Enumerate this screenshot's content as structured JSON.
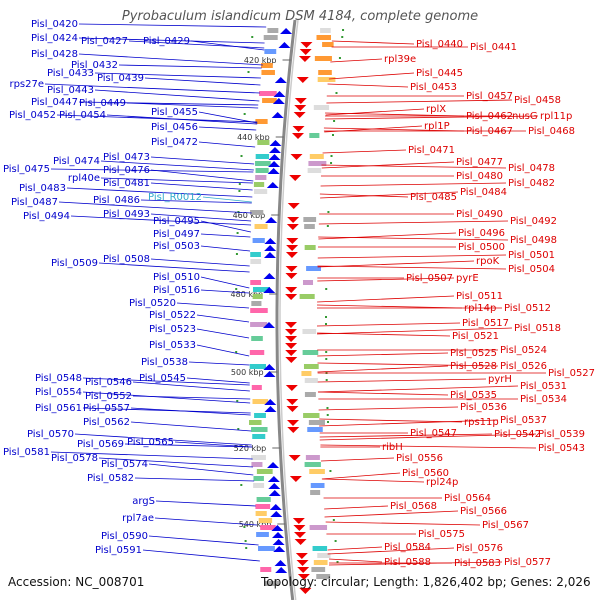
{
  "title": "Pyrobaculum islandicum DSM 4184, complete genome",
  "footer": {
    "accession": "Accession: NC_008701",
    "topology": "Topology: circular; Length: 1,826,402 bp; Genes: 2,026"
  },
  "colors": {
    "left_labels": "#0000cc",
    "right_labels": "#dd0000",
    "rna_label": "#33aacc",
    "backbone": "#888888"
  },
  "ticks": [
    "420 kbp",
    "440 kbp",
    "460 kbp",
    "480 kbp",
    "500 kbp",
    "520 kbp",
    "540 kbp"
  ],
  "left_labels": [
    "Pisl_0420",
    "Pisl_0424",
    "Pisl_0427",
    "Pisl_0429",
    "Pisl_0428",
    "Pisl_0432",
    "Pisl_0433",
    "Pisl_0439",
    "rps27e",
    "Pisl_0443",
    "Pisl_0447",
    "Pisl_0449",
    "Pisl_0452",
    "Pisl_0454",
    "Pisl_0455",
    "Pisl_0456",
    "Pisl_0472",
    "Pisl_0473",
    "Pisl_0474",
    "Pisl_0476",
    "Pisl_0475",
    "rpl40e",
    "Pisl_0481",
    "Pisl_0483",
    "Pisl_0487",
    "Pisl_0486",
    "Pisl_R0012",
    "Pisl_0493",
    "Pisl_0494",
    "Pisl_0495",
    "Pisl_0497",
    "Pisl_0503",
    "Pisl_0508",
    "Pisl_0509",
    "Pisl_0510",
    "Pisl_0516",
    "Pisl_0520",
    "Pisl_0522",
    "Pisl_0523",
    "Pisl_0533",
    "Pisl_0538",
    "Pisl_0545",
    "Pisl_0548",
    "Pisl_0546",
    "Pisl_0554",
    "Pisl_0552",
    "Pisl_0561",
    "Pisl_0557",
    "Pisl_0562",
    "Pisl_0570",
    "Pisl_0569",
    "Pisl_0565",
    "Pisl_0581",
    "Pisl_0578",
    "Pisl_0574",
    "Pisl_0582",
    "argS",
    "rpl7ae",
    "Pisl_0590",
    "Pisl_0591"
  ],
  "right_labels": [
    "Pisl_0440",
    "Pisl_0441",
    "rpl39e",
    "Pisl_0445",
    "Pisl_0453",
    "Pisl_0457",
    "Pisl_0458",
    "rplX",
    "Pisl_0462",
    "nusG",
    "rpl11p",
    "rpl1P",
    "Pisl_0467",
    "Pisl_0468",
    "Pisl_0471",
    "Pisl_0477",
    "Pisl_0478",
    "Pisl_0480",
    "Pisl_0482",
    "Pisl_0484",
    "Pisl_0485",
    "Pisl_0490",
    "Pisl_0492",
    "Pisl_0496",
    "Pisl_0498",
    "Pisl_0500",
    "Pisl_0501",
    "rpoK",
    "Pisl_0504",
    "Pisl_0507",
    "pyrE",
    "Pisl_0511",
    "rpl14p",
    "Pisl_0512",
    "Pisl_0517",
    "Pisl_0518",
    "Pisl_0521",
    "Pisl_0524",
    "Pisl_0525",
    "Pisl_0528",
    "Pisl_0526",
    "Pisl_0527",
    "pyrH",
    "Pisl_0531",
    "Pisl_0535",
    "Pisl_0534",
    "Pisl_0536",
    "Pisl_0537",
    "rps11p",
    "Pisl_0547",
    "Pisl_0542",
    "Pisl_0539",
    "Pisl_0543",
    "ribH",
    "Pisl_0556",
    "Pisl_0560",
    "rpl24p",
    "Pisl_0564",
    "Pisl_0568",
    "Pisl_0566",
    "Pisl_0567",
    "Pisl_0575",
    "Pisl_0584",
    "Pisl_0576",
    "Pisl_0588",
    "Pisl_0583",
    "Pisl_0577"
  ]
}
